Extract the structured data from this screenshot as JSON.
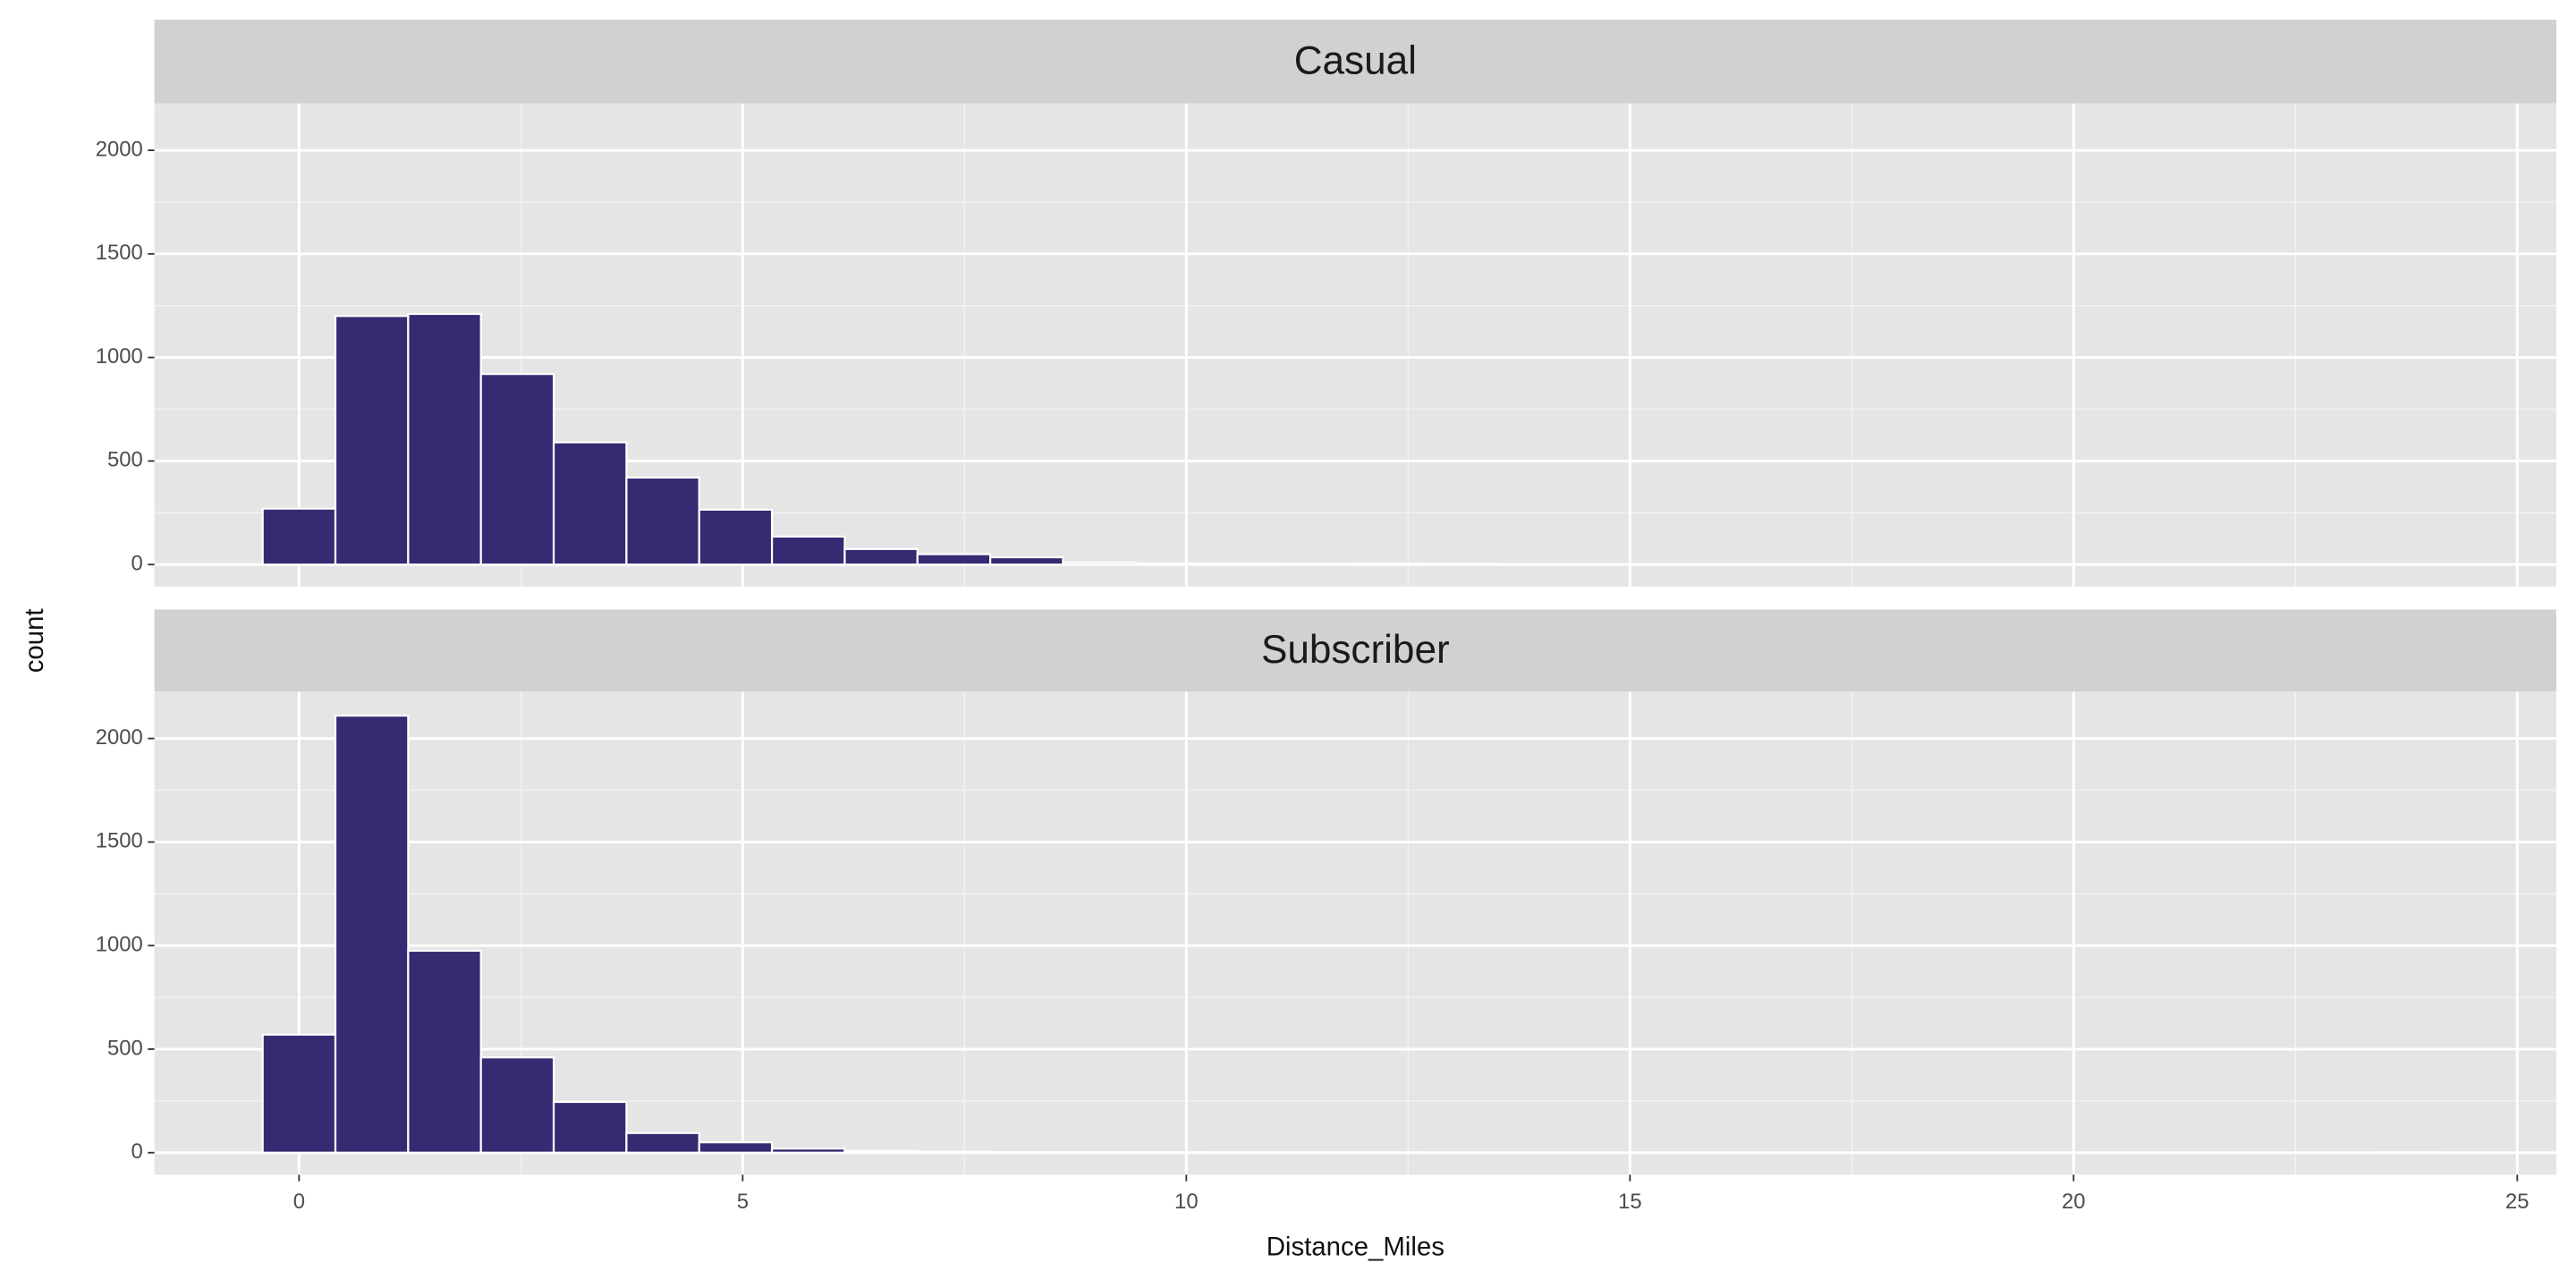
{
  "chart_data": [
    {
      "type": "histogram",
      "title": "Casual",
      "y_label": "count",
      "color": "#372a72",
      "grid": true,
      "bins": [
        -0.41,
        0.41,
        1.23,
        2.05,
        2.87,
        3.69,
        4.51,
        5.33,
        6.15,
        6.97,
        7.79,
        8.61,
        9.43,
        10.25,
        11.07,
        11.89,
        12.71,
        13.53,
        14.35,
        15.17,
        15.99,
        16.81,
        17.63,
        18.45,
        19.27,
        20.09,
        20.91,
        21.73,
        22.55,
        23.37,
        24.19
      ],
      "values": [
        270,
        1200,
        1210,
        920,
        590,
        420,
        265,
        135,
        75,
        50,
        35,
        10,
        5,
        5,
        3,
        5,
        3,
        2,
        2,
        1,
        1,
        1,
        0,
        0,
        0,
        0,
        0,
        0,
        0,
        1
      ],
      "xlim": [
        -1.63,
        25.44
      ],
      "xticks": [
        0,
        5,
        10,
        15,
        20,
        25
      ],
      "ylim": [
        -106,
        2226
      ],
      "yticks": [
        0,
        500,
        1000,
        1500,
        2000
      ]
    },
    {
      "type": "histogram",
      "title": "Subscriber",
      "x_label": "Distance_Miles",
      "color": "#372a72",
      "grid": true,
      "bins": [
        -0.41,
        0.41,
        1.23,
        2.05,
        2.87,
        3.69,
        4.51,
        5.33,
        6.15,
        6.97,
        7.79,
        8.61,
        9.43,
        10.25,
        11.07,
        11.89,
        12.71,
        13.53,
        14.35,
        15.17,
        15.99,
        16.81,
        17.63,
        18.45,
        19.27,
        20.09,
        20.91,
        21.73,
        22.55,
        23.37,
        24.19
      ],
      "values": [
        570,
        2110,
        975,
        460,
        245,
        95,
        50,
        20,
        8,
        5,
        3,
        2,
        2,
        1,
        1,
        1,
        0,
        0,
        0,
        0,
        0,
        0,
        0,
        0,
        0,
        0,
        0,
        0,
        0,
        1
      ],
      "xlim": [
        -1.63,
        25.44
      ],
      "xticks": [
        0,
        5,
        10,
        15,
        20,
        25
      ],
      "ylim": [
        -106,
        2226
      ],
      "yticks": [
        0,
        500,
        1000,
        1500,
        2000
      ]
    }
  ]
}
